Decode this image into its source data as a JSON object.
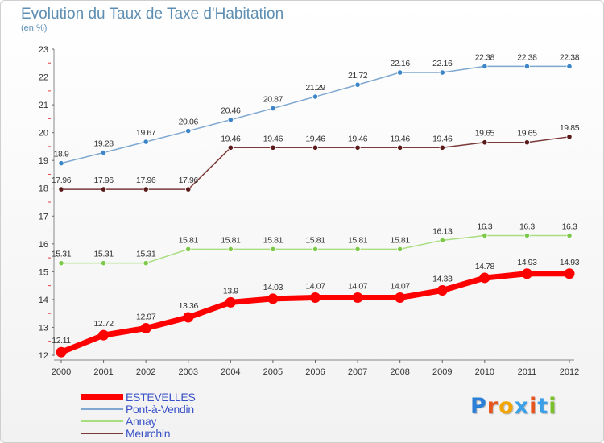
{
  "title": "Evolution du Taux de Taxe d'Habitation",
  "unit": "(en %)",
  "logo": {
    "text": "Proxiti",
    "letter_colors": [
      "#2b7fd6",
      "#e8551c",
      "#f2a400",
      "#3aa0e8",
      "#e8551c",
      "#3aa0e8",
      "#7bbf2a"
    ]
  },
  "chart_data": {
    "type": "line",
    "x": [
      2000,
      2001,
      2002,
      2003,
      2004,
      2005,
      2006,
      2007,
      2008,
      2009,
      2010,
      2011,
      2012
    ],
    "ylim": [
      12,
      23
    ],
    "yticks": [
      12,
      13,
      14,
      15,
      16,
      17,
      18,
      19,
      20,
      21,
      22,
      23
    ],
    "grid": false,
    "legend_position": "bottom-left",
    "series": [
      {
        "name": "ESTEVELLES",
        "color": "#ff0000",
        "emphasis": true,
        "values": [
          12.11,
          12.72,
          12.97,
          13.36,
          13.9,
          14.03,
          14.07,
          14.07,
          14.07,
          14.33,
          14.78,
          14.93,
          14.93
        ],
        "labels": [
          "12.11",
          "12.72",
          "12.97",
          "13.36",
          "13.9",
          "14.03",
          "14.07",
          "14.07",
          "14.07",
          "14.33",
          "14.78",
          "14.93",
          "14.93"
        ]
      },
      {
        "name": "Pont-à-Vendin",
        "color": "#7fa8d0",
        "marker": "#3c86c8",
        "values": [
          18.9,
          19.28,
          19.67,
          20.06,
          20.46,
          20.87,
          21.29,
          21.72,
          22.16,
          22.16,
          22.38,
          22.38,
          22.38
        ],
        "labels": [
          "18.9",
          "19.28",
          "19.67",
          "20.06",
          "20.46",
          "20.87",
          "21.29",
          "21.72",
          "22.16",
          "22.16",
          "22.38",
          "22.38",
          "22.38"
        ]
      },
      {
        "name": "Annay",
        "color": "#a8de80",
        "marker": "#7cc94a",
        "values": [
          15.31,
          15.31,
          15.31,
          15.81,
          15.81,
          15.81,
          15.81,
          15.81,
          15.81,
          16.13,
          16.3,
          16.3,
          16.3
        ],
        "labels": [
          "15.31",
          "15.31",
          "15.31",
          "15.81",
          "15.81",
          "15.81",
          "15.81",
          "15.81",
          "15.81",
          "16.13",
          "16.3",
          "16.3",
          "16.3"
        ]
      },
      {
        "name": "Meurchin",
        "color": "#7a3a3a",
        "marker": "#5a1a1a",
        "values": [
          17.96,
          17.96,
          17.96,
          17.96,
          19.46,
          19.46,
          19.46,
          19.46,
          19.46,
          19.46,
          19.65,
          19.65,
          19.85
        ],
        "labels": [
          "17.96",
          "17.96",
          "17.96",
          "17.96",
          "19.46",
          "19.46",
          "19.46",
          "19.46",
          "19.46",
          "19.46",
          "19.65",
          "19.65",
          "19.85"
        ]
      }
    ]
  }
}
